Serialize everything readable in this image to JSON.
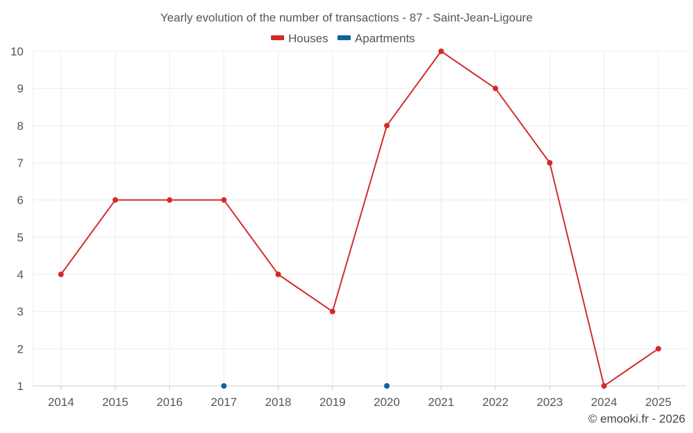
{
  "chart_data": {
    "type": "line",
    "title": "Yearly evolution of the number of transactions - 87 - Saint-Jean-Ligoure",
    "categories": [
      "2014",
      "2015",
      "2016",
      "2017",
      "2018",
      "2019",
      "2020",
      "2021",
      "2022",
      "2023",
      "2024",
      "2025"
    ],
    "ylim": [
      1,
      10
    ],
    "yticks": [
      "1",
      "2",
      "3",
      "4",
      "5",
      "6",
      "7",
      "8",
      "9",
      "10"
    ],
    "grid": true,
    "legend_position": "top-center",
    "series": [
      {
        "name": "Houses",
        "color": "#d32a2a",
        "values": [
          4,
          6,
          6,
          6,
          4,
          3,
          8,
          10,
          9,
          7,
          1,
          2
        ],
        "line": true
      },
      {
        "name": "Apartments",
        "color": "#0f6399",
        "values": [
          null,
          null,
          null,
          1,
          null,
          null,
          1,
          null,
          null,
          null,
          null,
          null
        ],
        "line": false
      }
    ],
    "credit": "© emooki.fr - 2026"
  }
}
